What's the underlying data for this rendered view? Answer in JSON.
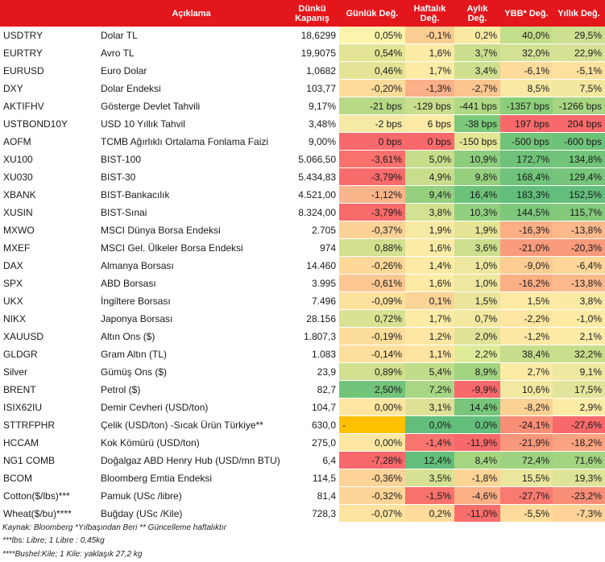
{
  "header": {
    "code": "",
    "description": "Açıklama",
    "close": "Dünkü Kapanış",
    "daily": "Günlük Değ.",
    "weekly": "Haftalık Değ.",
    "monthly": "Aylık Değ.",
    "ytd": "YBB* Değ.",
    "yearly": "Yıllık Değ."
  },
  "rows": [
    {
      "code": "USDTRY",
      "desc": "Dolar TL",
      "close": "18,6299",
      "d": "0,05%",
      "w": "-0,1%",
      "m": "0,2%",
      "y": "40,0%",
      "yr": "29,5%",
      "c": [
        "#fdf4ad",
        "#fccd92",
        "#fbeaa4",
        "#c3de8a",
        "#cddf91"
      ]
    },
    {
      "code": "EURTRY",
      "desc": "Avro TL",
      "close": "19,9075",
      "d": "0,54%",
      "w": "1,6%",
      "m": "3,7%",
      "y": "32,0%",
      "yr": "22,9%",
      "c": [
        "#e3e495",
        "#fbeba5",
        "#cadf8e",
        "#d3e195",
        "#d8e295"
      ]
    },
    {
      "code": "EURUSD",
      "desc": "Euro Dolar",
      "close": "1,0682",
      "d": "0,46%",
      "w": "1,7%",
      "m": "3,4%",
      "y": "-6,1%",
      "yr": "-5,1%",
      "c": [
        "#e5e496",
        "#fbeba5",
        "#cee08f",
        "#fddc9b",
        "#fde19d"
      ]
    },
    {
      "code": "DXY",
      "desc": "Dolar Endeksi",
      "close": "103,77",
      "d": "-0,20%",
      "w": "-1,3%",
      "m": "-2,7%",
      "y": "8,5%",
      "yr": "7,5%",
      "c": [
        "#fddc9b",
        "#fab089",
        "#fbc58f",
        "#f8e8a4",
        "#f3e79f"
      ]
    },
    {
      "code": "AKTIFHV",
      "desc": "Gösterge Devlet Tahvili",
      "close": "9,17%",
      "d": "-21 bps",
      "w": "-129 bps",
      "m": "-441 bps",
      "y": "-1357 bps",
      "yr": "-1266 bps",
      "c": [
        "#b8da87",
        "#c9de8c",
        "#afd884",
        "#8ccf7a",
        "#a8d682"
      ]
    },
    {
      "code": "USTBOND10Y",
      "desc": "USD 10 Yıllık Tahvil",
      "close": "3,48%",
      "d": "-2 bps",
      "w": "6 bps",
      "m": "-38 bps",
      "y": "197 bps",
      "yr": "204 bps",
      "c": [
        "#f6e9a5",
        "#fdeaa4",
        "#7dc97b",
        "#f8696b",
        "#f8696b"
      ]
    },
    {
      "code": "AOFM",
      "desc": "TCMB Ağırlıklı Ortalama Fonlama Faizi",
      "close": "9,00%",
      "d": "0 bps",
      "w": "0 bps",
      "m": "-150 bps",
      "y": "-500 bps",
      "yr": "-600 bps",
      "c": [
        "#f8696b",
        "#f8696b",
        "#e5e596",
        "#72c47a",
        "#6dc27a"
      ]
    },
    {
      "code": "XU100",
      "desc": "BIST-100",
      "close": "5.066,50",
      "d": "-3,61%",
      "w": "5,0%",
      "m": "10,9%",
      "y": "172,7%",
      "yr": "134,8%",
      "c": [
        "#f8716d",
        "#c6dd8b",
        "#8ccd7d",
        "#6ec27a",
        "#72c47a"
      ]
    },
    {
      "code": "XU030",
      "desc": "BIST-30",
      "close": "5.434,83",
      "d": "-3,79%",
      "w": "4,9%",
      "m": "9,8%",
      "y": "168,4%",
      "yr": "129,4%",
      "c": [
        "#f86b6b",
        "#c8de8c",
        "#96d07f",
        "#70c37a",
        "#76c57b"
      ]
    },
    {
      "code": "XBANK",
      "desc": "BIST-Bankacılık",
      "close": "4.521,00",
      "d": "-1,12%",
      "w": "9,4%",
      "m": "16,4%",
      "y": "183,3%",
      "yr": "152,5%",
      "c": [
        "#fbb58a",
        "#96d07f",
        "#6dc27a",
        "#63be7b",
        "#63be7b"
      ]
    },
    {
      "code": "XUSIN",
      "desc": "BIST-Sınai",
      "close": "8.324,00",
      "d": "-3,79%",
      "w": "3,8%",
      "m": "10,3%",
      "y": "144,5%",
      "yr": "115,7%",
      "c": [
        "#f86b6b",
        "#d3e192",
        "#92cf7e",
        "#7ec87b",
        "#82c97c"
      ]
    },
    {
      "code": "MXWO",
      "desc": "MSCI Dünya Borsa Endeksi",
      "close": "2.705",
      "d": "-0,37%",
      "w": "1,9%",
      "m": "1,9%",
      "y": "-16,3%",
      "yr": "-13,8%",
      "c": [
        "#fdd297",
        "#f6e9a3",
        "#e3e496",
        "#fbaf85",
        "#fcba8c"
      ]
    },
    {
      "code": "MXEF",
      "desc": "MSCI Gel. Ülkeler Borsa Endeksi",
      "close": "974",
      "d": "0,88%",
      "w": "1,6%",
      "m": "3,6%",
      "y": "-21,0%",
      "yr": "-20,3%",
      "c": [
        "#d2e08f",
        "#fbeba5",
        "#cbdf8e",
        "#f99c7c",
        "#f99a7b"
      ]
    },
    {
      "code": "DAX",
      "desc": "Almanya Borsası",
      "close": "14.460",
      "d": "-0,26%",
      "w": "1,4%",
      "m": "1,0%",
      "y": "-9,0%",
      "yr": "-6,4%",
      "c": [
        "#fdd899",
        "#fdeba5",
        "#ede79f",
        "#fccd92",
        "#fdd698"
      ]
    },
    {
      "code": "SPX",
      "desc": "ABD Borsası",
      "close": "3.995",
      "d": "-0,61%",
      "w": "1,6%",
      "m": "1,0%",
      "y": "-16,2%",
      "yr": "-13,8%",
      "c": [
        "#fcc791",
        "#fbeba5",
        "#ede79f",
        "#fbaf85",
        "#fcba8c"
      ]
    },
    {
      "code": "UKX",
      "desc": "İngiltere Borsası",
      "close": "7.496",
      "d": "-0,09%",
      "w": "0,1%",
      "m": "1,5%",
      "y": "1,5%",
      "yr": "3,8%",
      "c": [
        "#fde29e",
        "#fbd497",
        "#e9e69c",
        "#fdeba5",
        "#fbeaa4"
      ]
    },
    {
      "code": "NIKX",
      "desc": "Japonya Borsası",
      "close": "28.156",
      "d": "0,72%",
      "w": "1,7%",
      "m": "0,7%",
      "y": "-2,2%",
      "yr": "-1,0%",
      "c": [
        "#d9e292",
        "#fbeba5",
        "#f2e8a1",
        "#fde6a1",
        "#fdeba4"
      ]
    },
    {
      "code": "XAUUSD",
      "desc": "Altın Ons ($)",
      "close": "1.807,3",
      "d": "-0,19%",
      "w": "1,2%",
      "m": "2,0%",
      "y": "-1,2%",
      "yr": "2,1%",
      "c": [
        "#fddd9c",
        "#fde7a2",
        "#e1e398",
        "#fde9a3",
        "#fdeca7"
      ]
    },
    {
      "code": "GLDGR",
      "desc": "Gram Altın (TL)",
      "close": "1.083",
      "d": "-0,14%",
      "w": "1,1%",
      "m": "2,2%",
      "y": "38,4%",
      "yr": "32,2%",
      "c": [
        "#fddf9d",
        "#fde5a1",
        "#deea98",
        "#c6dd8b",
        "#c9de8c"
      ]
    },
    {
      "code": "Silver",
      "desc": "Gümüş Ons ($)",
      "close": "23,9",
      "d": "0,89%",
      "w": "5,4%",
      "m": "8,9%",
      "y": "2,7%",
      "yr": "9,1%",
      "c": [
        "#d1e08f",
        "#c1dc8a",
        "#a1d381",
        "#fceba5",
        "#eee8a1"
      ]
    },
    {
      "code": "BRENT",
      "desc": "Petrol ($)",
      "close": "82,7",
      "d": "2,50%",
      "w": "7,2%",
      "m": "-9,9%",
      "y": "10,6%",
      "yr": "17,5%",
      "c": [
        "#72c47a",
        "#a9d684",
        "#f8696b",
        "#f3e8a1",
        "#e1e49a"
      ]
    },
    {
      "code": "ISIX62IU",
      "desc": "Demir Cevheri (USD/ton)",
      "close": "104,7",
      "d": "0,00%",
      "w": "3,1%",
      "m": "14,4%",
      "y": "-8,2%",
      "yr": "2,9%",
      "c": [
        "#fde6a1",
        "#dee296",
        "#78c67b",
        "#fcd194",
        "#fbeca5"
      ]
    },
    {
      "code": "STTRFPHR",
      "desc": "Çelik (USD/ton) -Sıcak Ürün Türkiye**",
      "close": "630,0",
      "d": "-",
      "w": "0,0%",
      "m": "0,0%",
      "y": "-24,1%",
      "yr": "-27,6%",
      "c": [
        "#ffc000",
        "#63be7b",
        "#63be7b",
        "#f98e77",
        "#f8696b"
      ]
    },
    {
      "code": "HCCAM",
      "desc": "Kok Kömürü (USD/ton)",
      "close": "275,0",
      "d": "0,00%",
      "w": "-1,4%",
      "m": "-11,9%",
      "y": "-21,9%",
      "yr": "-18,2%",
      "c": [
        "#fde6a1",
        "#f8746e",
        "#f8696b",
        "#f9977a",
        "#fba281"
      ]
    },
    {
      "code": "NG1 COMB",
      "desc": "Doğalgaz ABD Henry Hub (USD/mn BTU)",
      "close": "6,4",
      "d": "-7,28%",
      "w": "12,4%",
      "m": "8,4%",
      "y": "72,4%",
      "yr": "71,6%",
      "c": [
        "#f8696b",
        "#63be7b",
        "#a6d582",
        "#9ed280",
        "#a3d481"
      ]
    },
    {
      "code": "BCOM",
      "desc": "Bloomberg Emtia Endeksi",
      "close": "114,5",
      "d": "-0,36%",
      "w": "3,5%",
      "m": "-1,8%",
      "y": "15,5%",
      "yr": "19,3%",
      "c": [
        "#fdd397",
        "#d6e194",
        "#fcd596",
        "#eae69e",
        "#dde397"
      ]
    },
    {
      "code": "Cotton($/lbs)***",
      "desc": "Pamuk (USc /libre)",
      "close": "81,4",
      "d": "-0,32%",
      "w": "-1,5%",
      "m": "-4,6%",
      "y": "-27,7%",
      "yr": "-23,2%",
      "c": [
        "#fdd598",
        "#f8716d",
        "#fbb084",
        "#f87a71",
        "#f98e77"
      ]
    },
    {
      "code": "Wheat($/bu)****",
      "desc": "Buğday (USc /Kile)",
      "close": "728,3",
      "d": "-0,07%",
      "w": "0,2%",
      "m": "-11,0%",
      "y": "-5,5%",
      "yr": "-7,3%",
      "c": [
        "#fde3a0",
        "#fddb9b",
        "#f86e6c",
        "#fddc9b",
        "#fdd397"
      ]
    }
  ],
  "footnotes": [
    "Kaynak: Bloomberg *Yılbaşından Beri  ** Güncelleme haftalıktır",
    "***lbs: Libre; 1 Libre : 0,45kg",
    "****Bushel:Kile; 1 Kile: yaklaşık 27,2 kg"
  ]
}
